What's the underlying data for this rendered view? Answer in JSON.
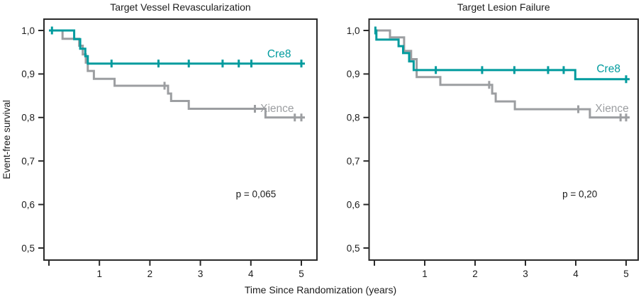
{
  "figure": {
    "y_axis_title": "Event-free survival",
    "x_axis_title": "Time Since Randomization (years)",
    "colors": {
      "cre8": "#009B9E",
      "xience": "#9C9EA1",
      "axis": "#2A2A2A",
      "text": "#1C1C1C"
    }
  },
  "chart_data": [
    {
      "type": "line",
      "subtype": "kaplan-meier-step",
      "title": "Target Vessel Revascularization",
      "p_label": "p = 0,065",
      "p_pos": [
        4.1,
        0.625
      ],
      "xlabel": "Time Since Randomization (years)",
      "ylabel": "Event-free survival",
      "xlim": [
        -0.1,
        5.3
      ],
      "ylim": [
        0.47,
        1.025
      ],
      "x_ticks": [
        0,
        1,
        2,
        3,
        4,
        5
      ],
      "x_tick_labels": [
        "",
        "1",
        "2",
        "3",
        "4",
        "5"
      ],
      "y_ticks": [
        1.0,
        0.9,
        0.8,
        0.7,
        0.6,
        0.5
      ],
      "y_tick_labels": [
        "1,0",
        "0,9",
        "0,8",
        "0,7",
        "0,6",
        "0,5"
      ],
      "grid": false,
      "series": [
        {
          "name": "Xience",
          "color": "#9C9EA1",
          "label_pos": [
            4.52,
            0.821
          ],
          "steps": [
            [
              0,
              1.0
            ],
            [
              0.27,
              1.0
            ],
            [
              0.27,
              0.981
            ],
            [
              0.6,
              0.981
            ],
            [
              0.6,
              0.965
            ],
            [
              0.67,
              0.965
            ],
            [
              0.67,
              0.945
            ],
            [
              0.73,
              0.945
            ],
            [
              0.73,
              0.926
            ],
            [
              0.77,
              0.926
            ],
            [
              0.77,
              0.907
            ],
            [
              0.89,
              0.907
            ],
            [
              0.89,
              0.889
            ],
            [
              1.3,
              0.889
            ],
            [
              1.3,
              0.873
            ],
            [
              2.36,
              0.873
            ],
            [
              2.36,
              0.855
            ],
            [
              2.42,
              0.855
            ],
            [
              2.42,
              0.838
            ],
            [
              2.77,
              0.838
            ],
            [
              2.77,
              0.82
            ],
            [
              4.29,
              0.82
            ],
            [
              4.29,
              0.8
            ],
            [
              5.07,
              0.8
            ]
          ],
          "censor_x": [
            2.29,
            4.08,
            4.87,
            5.0
          ]
        },
        {
          "name": "Cre8",
          "color": "#009B9E",
          "label_pos": [
            4.56,
            0.946
          ],
          "steps": [
            [
              0,
              1.0
            ],
            [
              0.5,
              1.0
            ],
            [
              0.5,
              0.98
            ],
            [
              0.62,
              0.98
            ],
            [
              0.62,
              0.958
            ],
            [
              0.72,
              0.958
            ],
            [
              0.72,
              0.941
            ],
            [
              0.77,
              0.941
            ],
            [
              0.77,
              0.924
            ],
            [
              5.07,
              0.924
            ]
          ],
          "censor_x": [
            0.06,
            1.24,
            2.17,
            2.77,
            3.44,
            3.76,
            4.01,
            5.0
          ]
        }
      ]
    },
    {
      "type": "line",
      "subtype": "kaplan-meier-step",
      "title": "Target Lesion Failure",
      "p_label": "p = 0,20",
      "p_pos": [
        4.08,
        0.625
      ],
      "xlabel": "Time Since Randomization (years)",
      "ylabel": "Event-free survival",
      "xlim": [
        -0.1,
        5.3
      ],
      "ylim": [
        0.47,
        1.025
      ],
      "x_ticks": [
        0,
        1,
        2,
        3,
        4,
        5
      ],
      "x_tick_labels": [
        "",
        "1",
        "2",
        "3",
        "4",
        "5"
      ],
      "y_ticks": [
        1.0,
        0.9,
        0.8,
        0.7,
        0.6,
        0.5
      ],
      "y_tick_labels": [
        "1,0",
        "0,9",
        "0,8",
        "0,7",
        "0,6",
        "0,5"
      ],
      "grid": false,
      "series": [
        {
          "name": "Xience",
          "color": "#9C9EA1",
          "label_pos": [
            4.72,
            0.821
          ],
          "steps": [
            [
              0,
              1.0
            ],
            [
              0.31,
              1.0
            ],
            [
              0.31,
              0.984
            ],
            [
              0.59,
              0.984
            ],
            [
              0.59,
              0.953
            ],
            [
              0.73,
              0.953
            ],
            [
              0.73,
              0.934
            ],
            [
              0.84,
              0.934
            ],
            [
              0.84,
              0.893
            ],
            [
              1.31,
              0.893
            ],
            [
              1.31,
              0.875
            ],
            [
              2.34,
              0.875
            ],
            [
              2.34,
              0.855
            ],
            [
              2.41,
              0.855
            ],
            [
              2.41,
              0.837
            ],
            [
              2.79,
              0.837
            ],
            [
              2.79,
              0.819
            ],
            [
              4.28,
              0.819
            ],
            [
              4.28,
              0.8
            ],
            [
              5.07,
              0.8
            ]
          ],
          "censor_x": [
            2.28,
            4.05,
            4.89,
            5.0
          ]
        },
        {
          "name": "Cre8",
          "color": "#009B9E",
          "label_pos": [
            4.65,
            0.912
          ],
          "steps": [
            [
              0,
              1.0
            ],
            [
              0.04,
              1.0
            ],
            [
              0.04,
              0.979
            ],
            [
              0.48,
              0.979
            ],
            [
              0.48,
              0.964
            ],
            [
              0.57,
              0.964
            ],
            [
              0.57,
              0.948
            ],
            [
              0.69,
              0.948
            ],
            [
              0.69,
              0.929
            ],
            [
              0.78,
              0.929
            ],
            [
              0.78,
              0.909
            ],
            [
              3.99,
              0.909
            ],
            [
              3.99,
              0.888
            ],
            [
              5.07,
              0.888
            ]
          ],
          "censor_x": [
            0.02,
            1.22,
            2.14,
            2.78,
            3.45,
            3.76,
            5.0
          ]
        }
      ]
    }
  ]
}
